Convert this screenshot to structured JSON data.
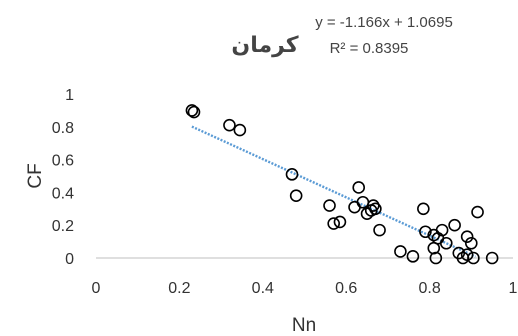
{
  "chart_data": {
    "type": "scatter",
    "title": "کرمان",
    "xlabel": "Nn",
    "ylabel": "CF",
    "xlim": [
      0,
      1
    ],
    "ylim": [
      0,
      1
    ],
    "x_ticks": [
      "0",
      "0.2",
      "0.4",
      "0.6",
      "0.8",
      "1"
    ],
    "y_ticks": [
      "0",
      "0.2",
      "0.4",
      "0.6",
      "0.8",
      "1"
    ],
    "grid": false,
    "trendline": {
      "type": "linear",
      "slope": -1.166,
      "intercept": 1.0695,
      "x_range": [
        0.23,
        0.91
      ],
      "equation_label": "y = -1.166x + 1.0695",
      "r2_label": "R² = 0.8395",
      "color": "#5B9BD5",
      "style": "dotted"
    },
    "marker": {
      "shape": "open-circle",
      "color": "#000000"
    },
    "points": [
      {
        "x": 0.23,
        "y": 0.9
      },
      {
        "x": 0.235,
        "y": 0.89
      },
      {
        "x": 0.32,
        "y": 0.81
      },
      {
        "x": 0.345,
        "y": 0.78
      },
      {
        "x": 0.47,
        "y": 0.51
      },
      {
        "x": 0.48,
        "y": 0.38
      },
      {
        "x": 0.56,
        "y": 0.32
      },
      {
        "x": 0.57,
        "y": 0.21
      },
      {
        "x": 0.585,
        "y": 0.22
      },
      {
        "x": 0.62,
        "y": 0.31
      },
      {
        "x": 0.63,
        "y": 0.43
      },
      {
        "x": 0.64,
        "y": 0.34
      },
      {
        "x": 0.65,
        "y": 0.27
      },
      {
        "x": 0.66,
        "y": 0.29
      },
      {
        "x": 0.665,
        "y": 0.32
      },
      {
        "x": 0.67,
        "y": 0.3
      },
      {
        "x": 0.68,
        "y": 0.17
      },
      {
        "x": 0.73,
        "y": 0.04
      },
      {
        "x": 0.76,
        "y": 0.01
      },
      {
        "x": 0.785,
        "y": 0.3
      },
      {
        "x": 0.79,
        "y": 0.16
      },
      {
        "x": 0.81,
        "y": 0.06
      },
      {
        "x": 0.81,
        "y": 0.14
      },
      {
        "x": 0.815,
        "y": 0.0
      },
      {
        "x": 0.82,
        "y": 0.12
      },
      {
        "x": 0.83,
        "y": 0.17
      },
      {
        "x": 0.84,
        "y": 0.09
      },
      {
        "x": 0.86,
        "y": 0.2
      },
      {
        "x": 0.87,
        "y": 0.03
      },
      {
        "x": 0.88,
        "y": 0.0
      },
      {
        "x": 0.89,
        "y": 0.13
      },
      {
        "x": 0.89,
        "y": 0.02
      },
      {
        "x": 0.9,
        "y": 0.09
      },
      {
        "x": 0.905,
        "y": 0.0
      },
      {
        "x": 0.915,
        "y": 0.28
      },
      {
        "x": 0.95,
        "y": 0.0
      }
    ]
  }
}
